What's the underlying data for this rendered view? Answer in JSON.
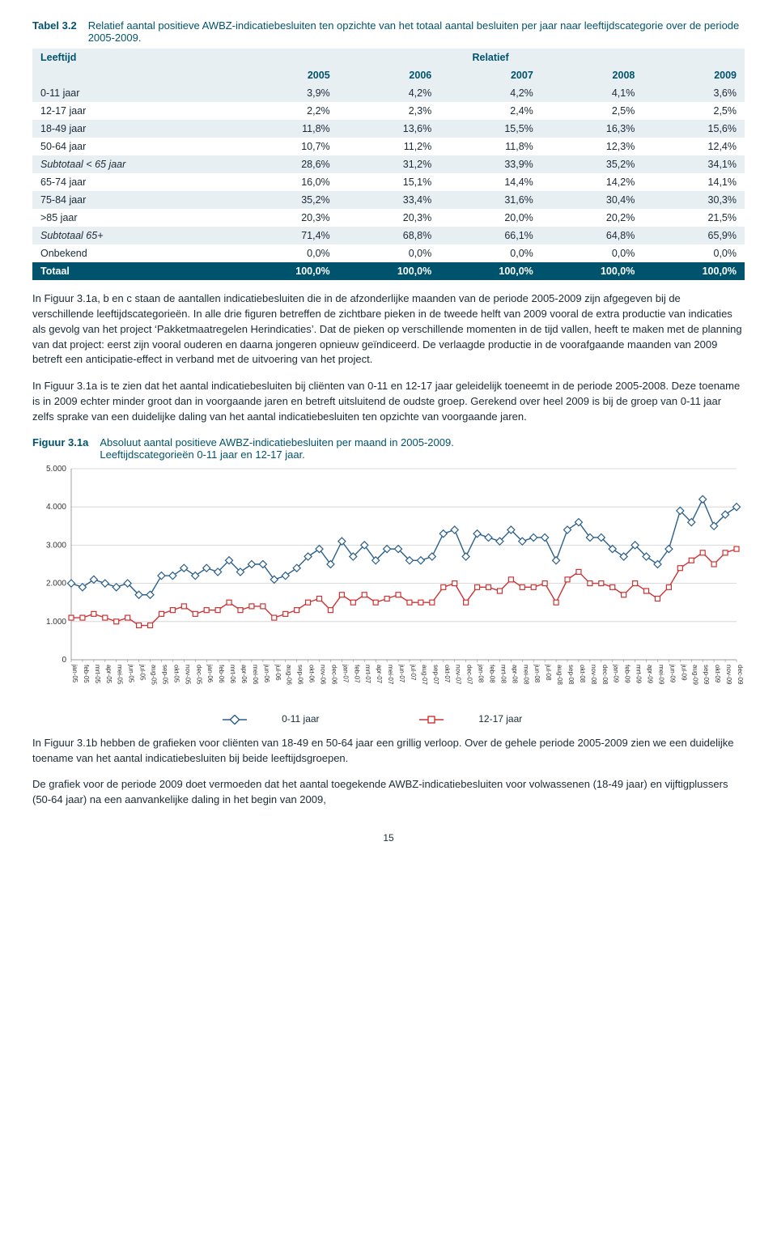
{
  "page_number": "15",
  "table": {
    "num": "Tabel 3.2",
    "title": "Relatief aantal positieve AWBZ-indicatiebesluiten ten opzichte van het totaal aantal besluiten per jaar naar leeftijdscategorie over de periode 2005-2009.",
    "header_left": "Leeftijd",
    "header_right": "Relatief",
    "years": [
      "2005",
      "2006",
      "2007",
      "2008",
      "2009"
    ],
    "rows": [
      {
        "label": "0-11 jaar",
        "vals": [
          "3,9%",
          "4,2%",
          "4,2%",
          "4,1%",
          "3,6%"
        ],
        "shade": "light"
      },
      {
        "label": "12-17 jaar",
        "vals": [
          "2,2%",
          "2,3%",
          "2,4%",
          "2,5%",
          "2,5%"
        ],
        "shade": "white"
      },
      {
        "label": "18-49 jaar",
        "vals": [
          "11,8%",
          "13,6%",
          "15,5%",
          "16,3%",
          "15,6%"
        ],
        "shade": "light"
      },
      {
        "label": "50-64 jaar",
        "vals": [
          "10,7%",
          "11,2%",
          "11,8%",
          "12,3%",
          "12,4%"
        ],
        "shade": "white"
      },
      {
        "label": "Subtotaal < 65 jaar",
        "vals": [
          "28,6%",
          "31,2%",
          "33,9%",
          "35,2%",
          "34,1%"
        ],
        "shade": "light",
        "italic": true
      },
      {
        "label": "65-74 jaar",
        "vals": [
          "16,0%",
          "15,1%",
          "14,4%",
          "14,2%",
          "14,1%"
        ],
        "shade": "white"
      },
      {
        "label": "75-84 jaar",
        "vals": [
          "35,2%",
          "33,4%",
          "31,6%",
          "30,4%",
          "30,3%"
        ],
        "shade": "light"
      },
      {
        "label": ">85 jaar",
        "vals": [
          "20,3%",
          "20,3%",
          "20,0%",
          "20,2%",
          "21,5%"
        ],
        "shade": "white"
      },
      {
        "label": "Subtotaal 65+",
        "vals": [
          "71,4%",
          "68,8%",
          "66,1%",
          "64,8%",
          "65,9%"
        ],
        "shade": "light",
        "italic": true
      },
      {
        "label": "Onbekend",
        "vals": [
          "0,0%",
          "0,0%",
          "0,0%",
          "0,0%",
          "0,0%"
        ],
        "shade": "white"
      },
      {
        "label": "Totaal",
        "vals": [
          "100,0%",
          "100,0%",
          "100,0%",
          "100,0%",
          "100,0%"
        ],
        "shade": "total"
      }
    ]
  },
  "paragraphs": [
    "In Figuur 3.1a, b en c staan de aantallen indicatiebesluiten die in de afzonderlijke maanden van de periode 2005-2009 zijn afgegeven bij de verschillende leeftijdscategorieën. In alle drie figuren betreffen de zichtbare pieken in de tweede helft van 2009 vooral de extra productie van indicaties als gevolg van het project ‘Pakketmaatregelen Herindicaties’. Dat de pieken op verschillende momenten in de tijd vallen, heeft te maken met de planning van dat project: eerst zijn vooral ouderen en daarna jongeren opnieuw geïndiceerd. De verlaagde productie in de voorafgaande maanden van 2009 betreft een anticipatie-effect in verband met de uitvoering van het project.",
    "In Figuur 3.1a is te zien dat het aantal indicatiebesluiten bij cliënten van 0-11 en 12-17 jaar geleidelijk toeneemt in de periode 2005-2008. Deze toename is in 2009 echter minder groot dan in voorgaande jaren en betreft uitsluitend de oudste groep. Gerekend over heel 2009 is bij de groep van 0-11 jaar zelfs sprake van een duidelijke daling van het aantal indicatiebesluiten ten opzichte van voorgaande jaren."
  ],
  "figure": {
    "num": "Figuur 3.1a",
    "title": "Absoluut aantal positieve AWBZ-indicatiebesluiten per maand in 2005-2009.",
    "subtitle": "Leeftijdscategorieën 0-11 jaar en 12-17 jaar.",
    "y_ticks": [
      0,
      1000,
      2000,
      3000,
      4000,
      5000
    ],
    "y_tick_labels": [
      "0",
      "1.000",
      "2.000",
      "3.000",
      "4.000",
      "5.000"
    ],
    "y_max": 5000,
    "months": [
      "jan-05",
      "feb-05",
      "mrt-05",
      "apr-05",
      "mei-05",
      "jun-05",
      "jul-05",
      "aug-05",
      "sep-05",
      "okt-05",
      "nov-05",
      "dec-05",
      "jan-06",
      "feb-06",
      "mrt-06",
      "apr-06",
      "mei-06",
      "jun-06",
      "jul-06",
      "aug-06",
      "sep-06",
      "okt-06",
      "nov-06",
      "dec-06",
      "jan-07",
      "feb-07",
      "mrt-07",
      "apr-07",
      "mei-07",
      "jun-07",
      "jul-07",
      "aug-07",
      "sep-07",
      "okt-07",
      "nov-07",
      "dec-07",
      "jan-08",
      "feb-08",
      "mrt-08",
      "apr-08",
      "mei-08",
      "jun-08",
      "jul-08",
      "aug-08",
      "sep-08",
      "okt-08",
      "nov-08",
      "dec-08",
      "jan-09",
      "feb-09",
      "mrt-09",
      "apr-09",
      "mei-09",
      "jun-09",
      "jul-09",
      "aug-09",
      "sep-09",
      "okt-09",
      "nov-09",
      "dec-09"
    ],
    "series": [
      {
        "name": "0-11 jaar",
        "color": "#2a5f8a",
        "marker": "diamond",
        "values": [
          2000,
          1900,
          2100,
          2000,
          1900,
          2000,
          1700,
          1700,
          2200,
          2200,
          2400,
          2200,
          2400,
          2300,
          2600,
          2300,
          2500,
          2500,
          2100,
          2200,
          2400,
          2700,
          2900,
          2500,
          3100,
          2700,
          3000,
          2600,
          2900,
          2900,
          2600,
          2600,
          2700,
          3300,
          3400,
          2700,
          3300,
          3200,
          3100,
          3400,
          3100,
          3200,
          3200,
          2600,
          3400,
          3600,
          3200,
          3200,
          2900,
          2700,
          3000,
          2700,
          2500,
          2900,
          3900,
          3600,
          4200,
          3500,
          3800,
          4000
        ]
      },
      {
        "name": "12-17 jaar",
        "color": "#cc3333",
        "marker": "square",
        "values": [
          1100,
          1100,
          1200,
          1100,
          1000,
          1100,
          900,
          900,
          1200,
          1300,
          1400,
          1200,
          1300,
          1300,
          1500,
          1300,
          1400,
          1400,
          1100,
          1200,
          1300,
          1500,
          1600,
          1300,
          1700,
          1500,
          1700,
          1500,
          1600,
          1700,
          1500,
          1500,
          1500,
          1900,
          2000,
          1500,
          1900,
          1900,
          1800,
          2100,
          1900,
          1900,
          2000,
          1500,
          2100,
          2300,
          2000,
          2000,
          1900,
          1700,
          2000,
          1800,
          1600,
          1900,
          2400,
          2600,
          2800,
          2500,
          2800,
          2900
        ]
      }
    ],
    "plot_bg": "#ffffff",
    "grid_color": "#cfcfcf",
    "axis_color": "#888888",
    "legend": [
      "0-11 jaar",
      "12-17 jaar"
    ]
  },
  "after_paragraphs": [
    "In Figuur 3.1b hebben de grafieken voor cliënten van 18-49 en 50-64 jaar een grillig verloop. Over de gehele periode 2005-2009 zien we een duidelijke toename van het aantal indicatiebesluiten bij beide leeftijdsgroepen.",
    "De grafiek voor de periode 2009 doet vermoeden dat het aantal toegekende AWBZ-indicatiebesluiten voor volwassenen (18-49 jaar) en vijftigplussers (50-64 jaar) na een aanvankelijke daling in het begin van 2009,"
  ]
}
